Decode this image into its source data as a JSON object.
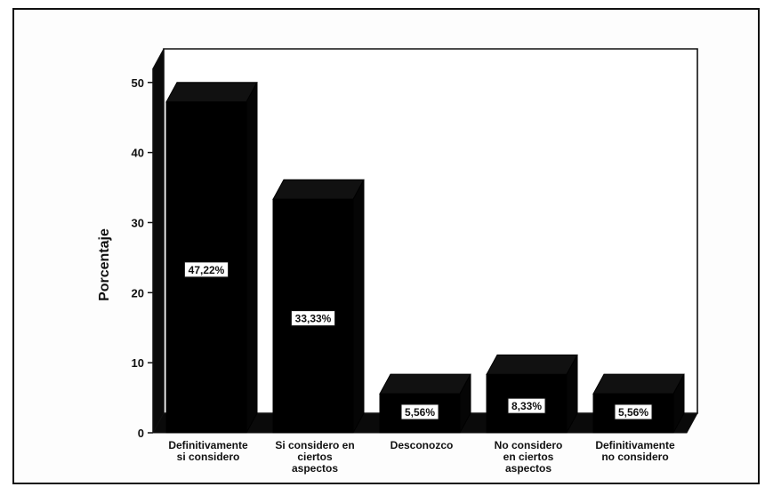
{
  "chart_data": {
    "type": "bar",
    "title": "",
    "xlabel": "",
    "ylabel": "Porcentaje",
    "ylim": [
      0,
      52
    ],
    "yticks": [
      0,
      10,
      20,
      30,
      40,
      50
    ],
    "grid": false,
    "legend": "none",
    "style": "3d",
    "bar_color": "#000000",
    "categories": [
      [
        "Definitivamente",
        "si considero"
      ],
      [
        "Si considero en",
        "ciertos",
        "aspectos"
      ],
      [
        "Desconozco"
      ],
      [
        "No considero",
        "en ciertos",
        "aspectos"
      ],
      [
        "Definitivamente",
        "no considero"
      ]
    ],
    "values": [
      47.22,
      33.33,
      5.56,
      8.33,
      5.56
    ],
    "data_labels": [
      "47,22%",
      "33,33%",
      "5,56%",
      "8,33%",
      "5,56%"
    ]
  }
}
